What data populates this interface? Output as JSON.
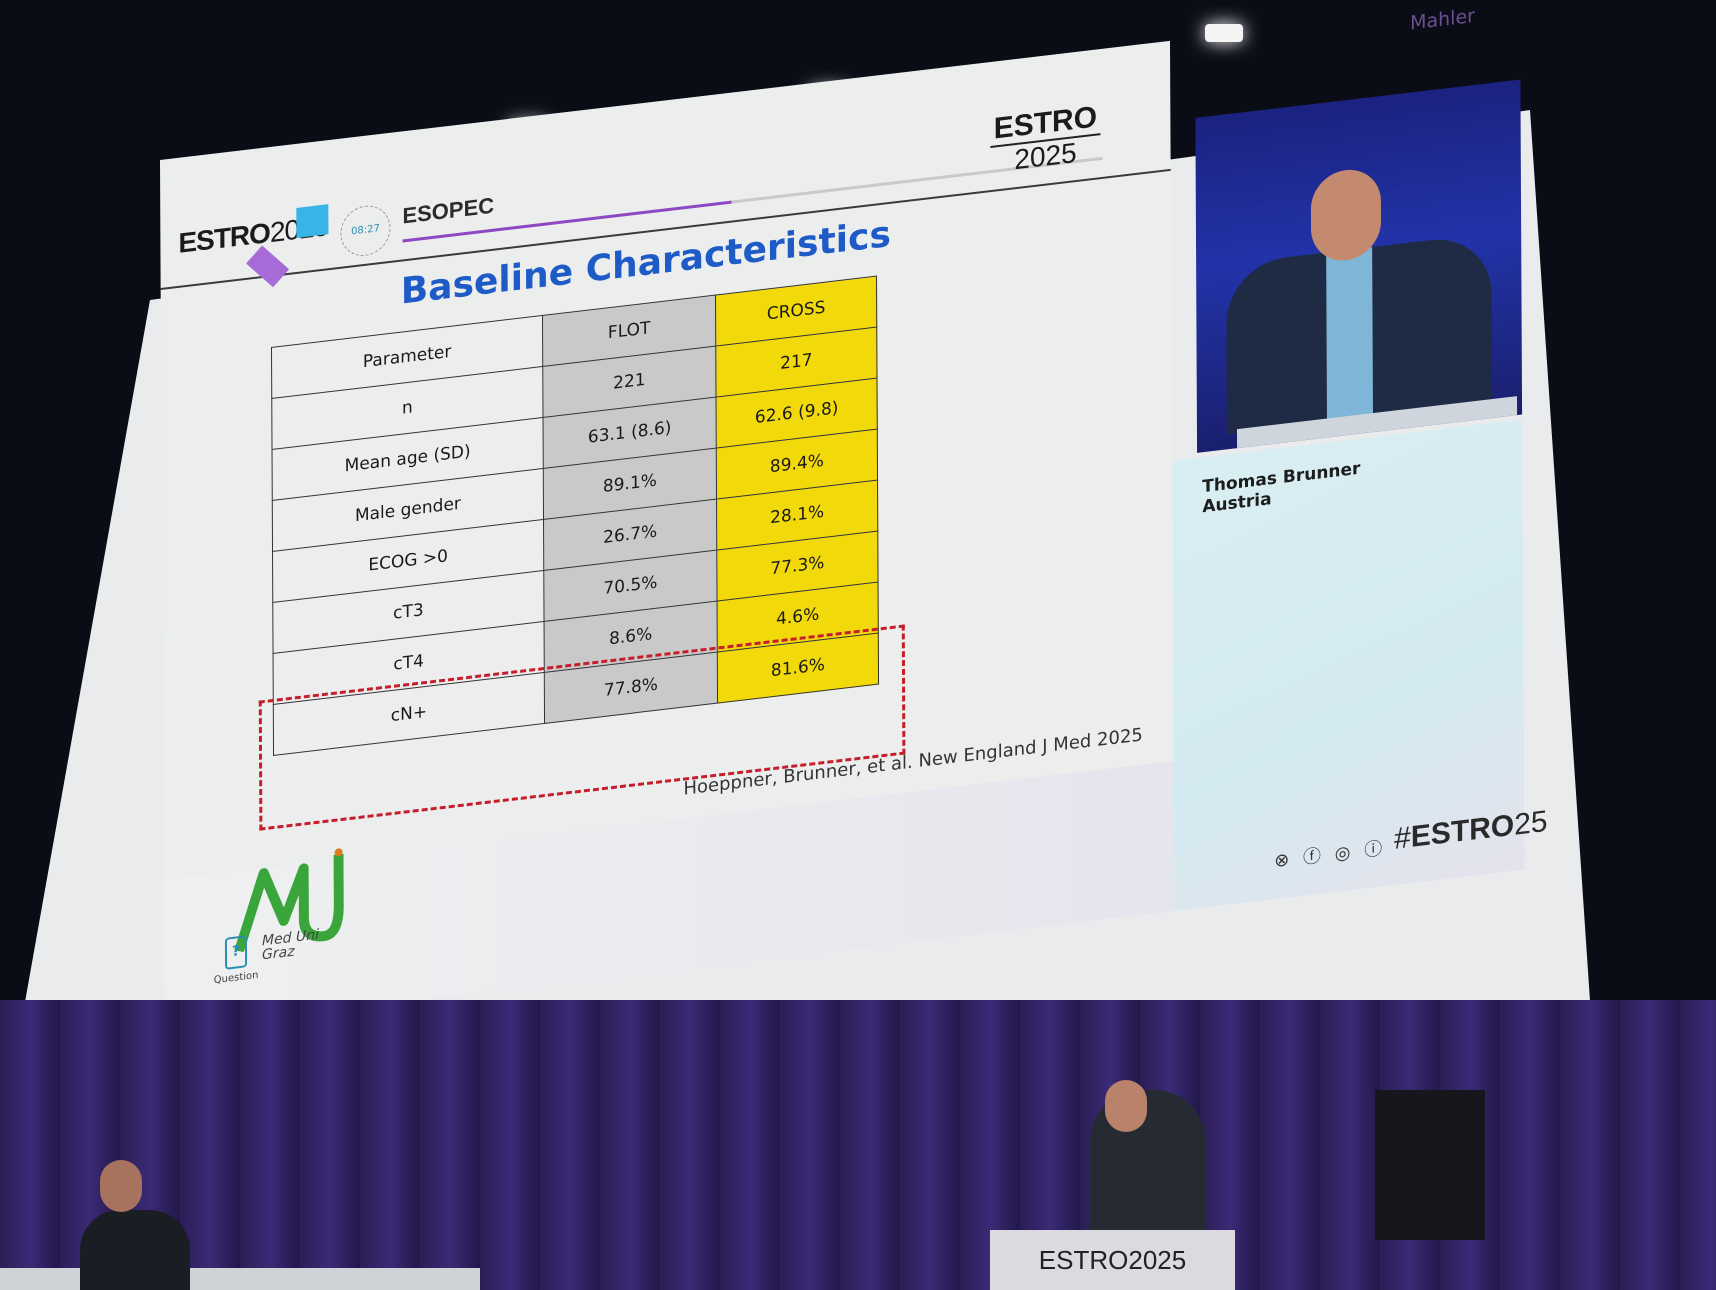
{
  "slide": {
    "logo_left": {
      "word": "ESTRO",
      "year": "2025"
    },
    "timer": "08:27",
    "session": "ESOPEC",
    "session_progress": 0.47,
    "logo_right": {
      "word": "ESTRO",
      "year": "2025"
    },
    "chair_label": "Mahler",
    "title": "Baseline Characteristics",
    "table": {
      "headers": [
        "Parameter",
        "FLOT",
        "CROSS"
      ],
      "rows": [
        [
          "n",
          "221",
          "217"
        ],
        [
          "Mean age (SD)",
          "63.1 (8.6)",
          "62.6 (9.8)"
        ],
        [
          "Male gender",
          "89.1%",
          "89.4%"
        ],
        [
          "ECOG >0",
          "26.7%",
          "28.1%"
        ],
        [
          "cT3",
          "70.5%",
          "77.3%"
        ],
        [
          "cT4",
          "8.6%",
          "4.6%"
        ],
        [
          "cN+",
          "77.8%",
          "81.6%"
        ]
      ],
      "highlighted_rows": [
        "cT4",
        "cN+"
      ]
    },
    "citation": "Hoeppner, Brunner, et al. New England J Med 2025",
    "university_logo": {
      "mark": "MU",
      "line1": "Med Uni",
      "line2": "Graz"
    },
    "question_label": "Question",
    "speaker": {
      "name": "Thomas Brunner",
      "country": "Austria"
    },
    "social_icons": [
      "x-icon",
      "facebook-icon",
      "instagram-icon",
      "linkedin-icon"
    ],
    "hashtag": {
      "symbol": "#",
      "brand": "ESTRO",
      "year": "25"
    }
  },
  "stage": {
    "podium_logo": "ESTRO2025"
  },
  "colors": {
    "title_blue": "#1f5bc7",
    "flot_column": "#c9c9c9",
    "cross_column": "#f2d90a",
    "highlight_dash": "#c41e2a",
    "progress_purple": "#8e48c4"
  }
}
